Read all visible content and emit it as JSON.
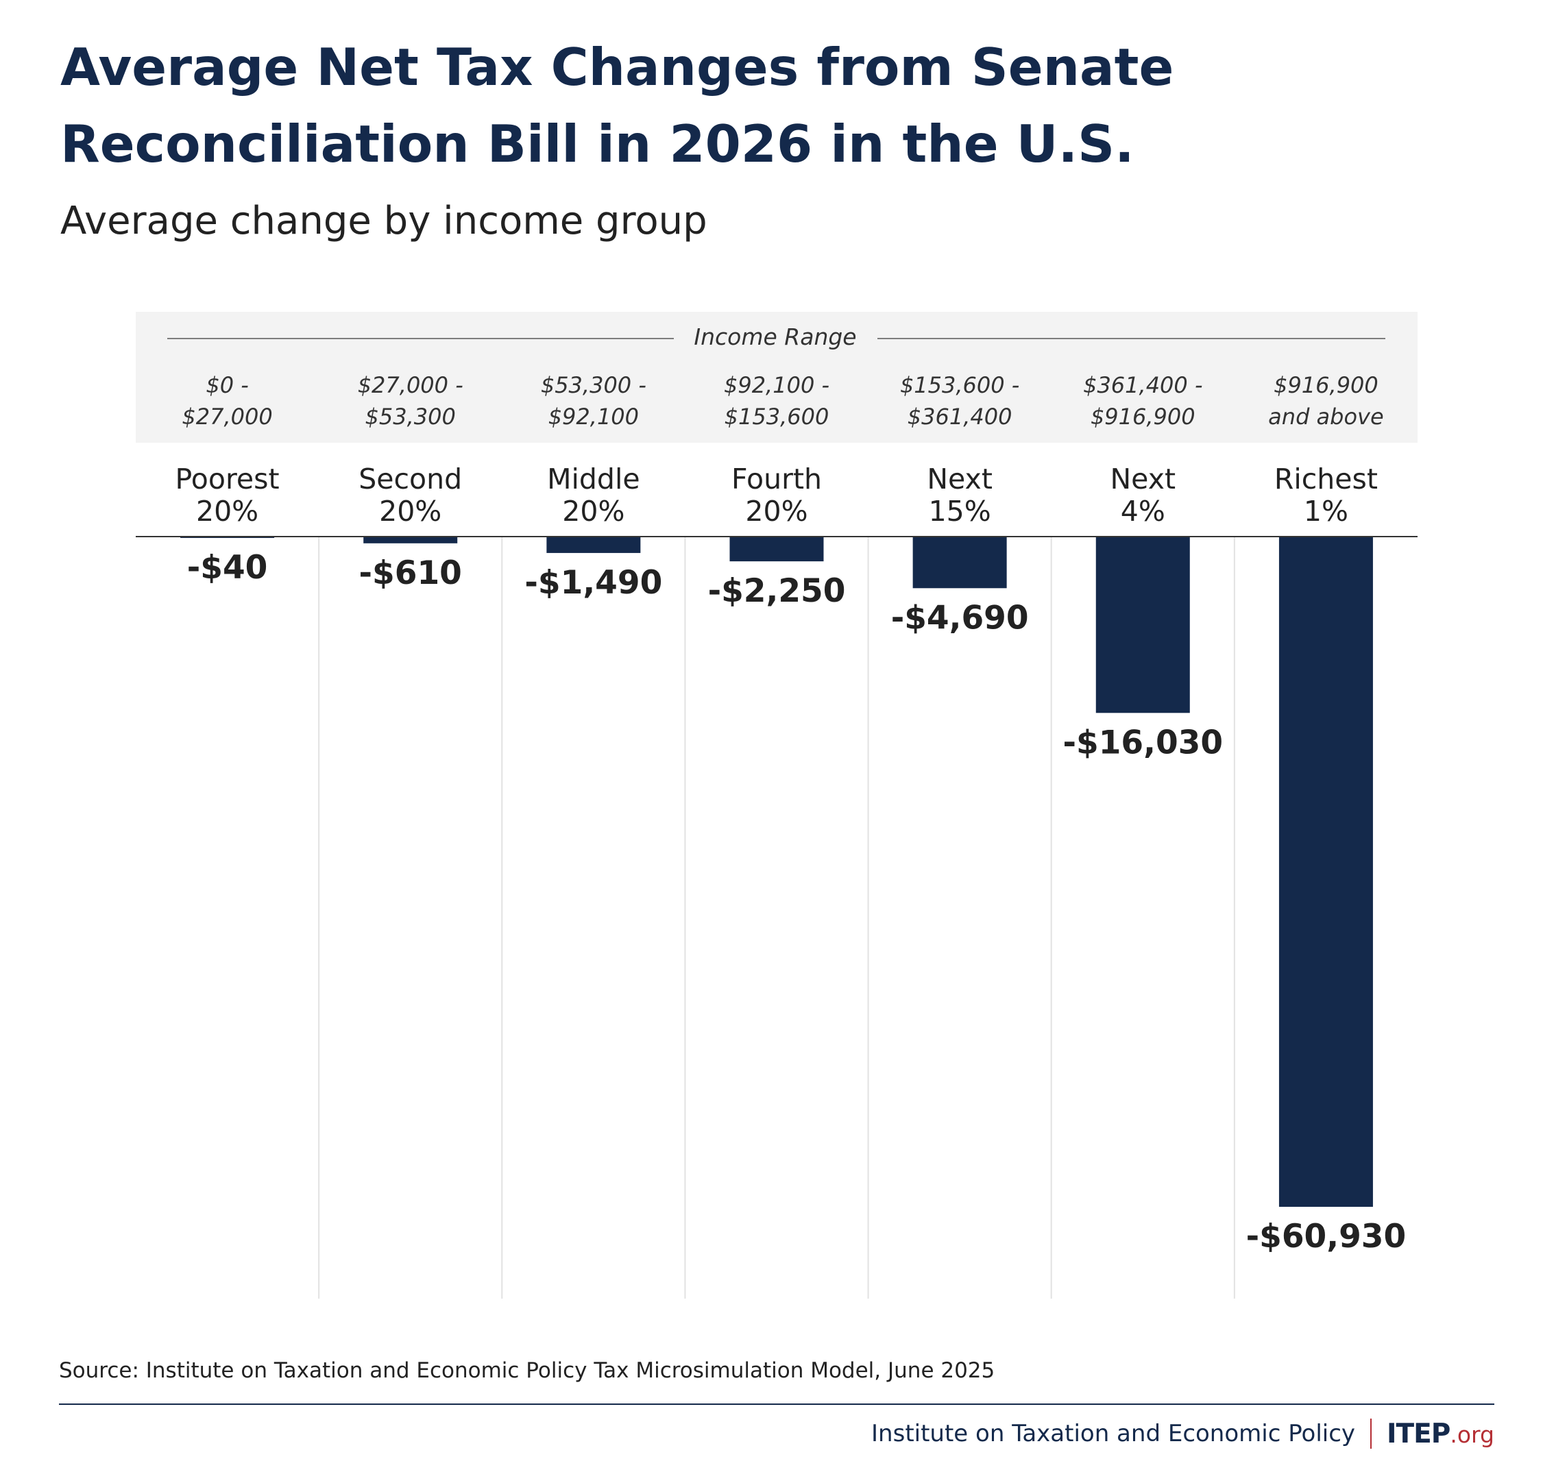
{
  "title": "Average Net Tax Changes from Senate Reconciliation Bill in 2026 in the U.S.",
  "subtitle": "Average change by income group",
  "colors": {
    "bar": "#14294b",
    "header_band": "#f3f3f3",
    "title": "#14294b",
    "accent": "#b52f35"
  },
  "chart_data": {
    "type": "bar",
    "orientation": "vertical-downward",
    "header": "Income Range",
    "groups": [
      {
        "range_line1": "$0 -",
        "range_line2": "$27,000",
        "name_line1": "Poorest",
        "name_line2": "20%",
        "label": "-$40"
      },
      {
        "range_line1": "$27,000 -",
        "range_line2": "$53,300",
        "name_line1": "Second",
        "name_line2": "20%",
        "label": "-$610"
      },
      {
        "range_line1": "$53,300 -",
        "range_line2": "$92,100",
        "name_line1": "Middle",
        "name_line2": "20%",
        "label": "-$1,490"
      },
      {
        "range_line1": "$92,100 -",
        "range_line2": "$153,600",
        "name_line1": "Fourth",
        "name_line2": "20%",
        "label": "-$2,250"
      },
      {
        "range_line1": "$153,600 -",
        "range_line2": "$361,400",
        "name_line1": "Next",
        "name_line2": "15%",
        "label": "-$4,690"
      },
      {
        "range_line1": "$361,400 -",
        "range_line2": "$916,900",
        "name_line1": "Next",
        "name_line2": "4%",
        "label": "-$16,030"
      },
      {
        "range_line1": "$916,900",
        "range_line2": "and above",
        "name_line1": "Richest",
        "name_line2": "1%",
        "label": "-$60,930"
      }
    ],
    "values": [
      -40,
      -610,
      -1490,
      -2250,
      -4690,
      -16030,
      -60930
    ],
    "ylim": [
      -60930,
      0
    ],
    "grid": "vertical separators between groups",
    "legend": "none"
  },
  "source": "Source: Institute on Taxation and Economic Policy Tax Microsimulation Model, June 2025",
  "footer": {
    "org": "Institute on Taxation and Economic Policy",
    "logo": "ITEP",
    "logo_suffix": ".org"
  }
}
